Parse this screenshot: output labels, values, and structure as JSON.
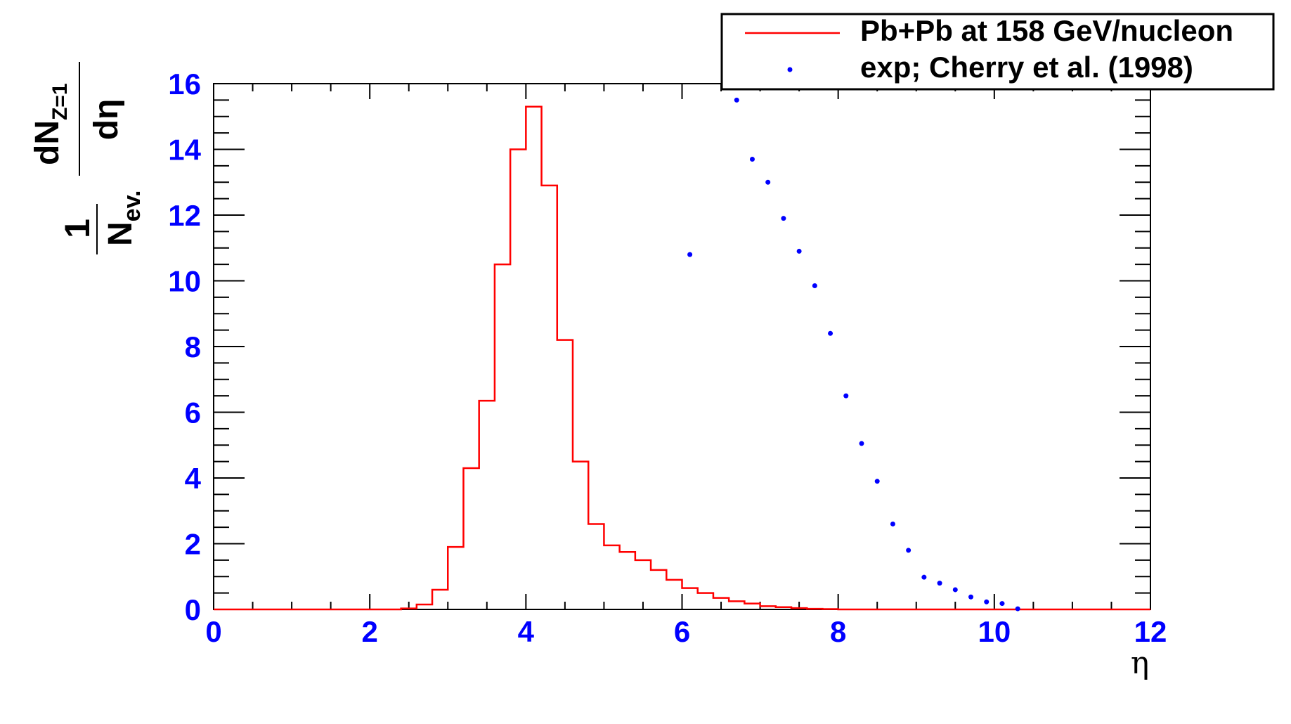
{
  "chart_data": {
    "type": "histogram+scatter",
    "xlabel": "η",
    "ylabel": {
      "one": "1",
      "nev_main": "N",
      "nev_sub": "ev.",
      "dn_main": "dN",
      "dn_sub": "Z=1",
      "deta": "dη"
    },
    "xlim": [
      0,
      12
    ],
    "ylim": [
      0,
      16
    ],
    "x_ticks": [
      "0",
      "2",
      "4",
      "6",
      "8",
      "10",
      "12"
    ],
    "y_ticks": [
      "0",
      "2",
      "4",
      "6",
      "8",
      "10",
      "12",
      "14",
      "16"
    ],
    "legend": {
      "position": "top-right",
      "entries": [
        {
          "label": "Pb+Pb at 158 GeV/nucleon",
          "style": "line",
          "color": "#ff0000"
        },
        {
          "label": "exp; Cherry et al. (1998)",
          "style": "marker",
          "color": "#0000ff"
        }
      ]
    },
    "series": [
      {
        "name": "Pb+Pb at 158 GeV/nucleon",
        "kind": "histogram",
        "color": "#ff0000",
        "bin_edges": [
          0,
          0.2,
          0.4,
          0.6,
          0.8,
          1.0,
          1.2,
          1.4,
          1.6,
          1.8,
          2.0,
          2.2,
          2.4,
          2.6,
          2.8,
          3.0,
          3.2,
          3.4,
          3.6,
          3.8,
          4.0,
          4.2,
          4.4,
          4.6,
          4.8,
          5.0,
          5.2,
          5.4,
          5.6,
          5.8,
          6.0,
          6.2,
          6.4,
          6.6,
          6.8,
          7.0,
          7.2,
          7.4,
          7.6,
          7.8,
          8.0,
          8.2,
          8.4,
          8.6,
          8.8,
          9.0,
          9.2,
          9.4,
          9.6,
          9.8,
          10.0,
          10.2,
          10.4,
          10.6,
          10.8,
          11.0,
          11.2,
          11.4,
          11.6,
          11.8,
          12.0
        ],
        "values": [
          0,
          0,
          0,
          0,
          0,
          0,
          0,
          0,
          0,
          0,
          0,
          0,
          0.03,
          0.15,
          0.6,
          1.9,
          4.3,
          6.35,
          10.5,
          14.0,
          15.3,
          12.9,
          8.2,
          4.5,
          2.6,
          1.95,
          1.75,
          1.5,
          1.2,
          0.9,
          0.65,
          0.5,
          0.35,
          0.25,
          0.18,
          0.1,
          0.07,
          0.04,
          0.02,
          0.01,
          0,
          0,
          0,
          0,
          0,
          0,
          0,
          0,
          0,
          0,
          0,
          0,
          0,
          0,
          0,
          0,
          0,
          0,
          0,
          0
        ]
      },
      {
        "name": "exp; Cherry et al. (1998)",
        "kind": "scatter",
        "color": "#0000ff",
        "x": [
          6.1,
          6.7,
          6.9,
          7.1,
          7.3,
          7.5,
          7.7,
          7.9,
          8.1,
          8.3,
          8.5,
          8.7,
          8.9,
          9.1,
          9.3,
          9.5,
          9.7,
          9.9,
          10.1,
          10.3
        ],
        "y": [
          10.8,
          15.5,
          13.7,
          13.0,
          11.9,
          10.9,
          9.85,
          8.4,
          6.5,
          5.05,
          3.9,
          2.6,
          1.8,
          0.98,
          0.8,
          0.6,
          0.38,
          0.23,
          0.18,
          0.02
        ]
      }
    ]
  }
}
